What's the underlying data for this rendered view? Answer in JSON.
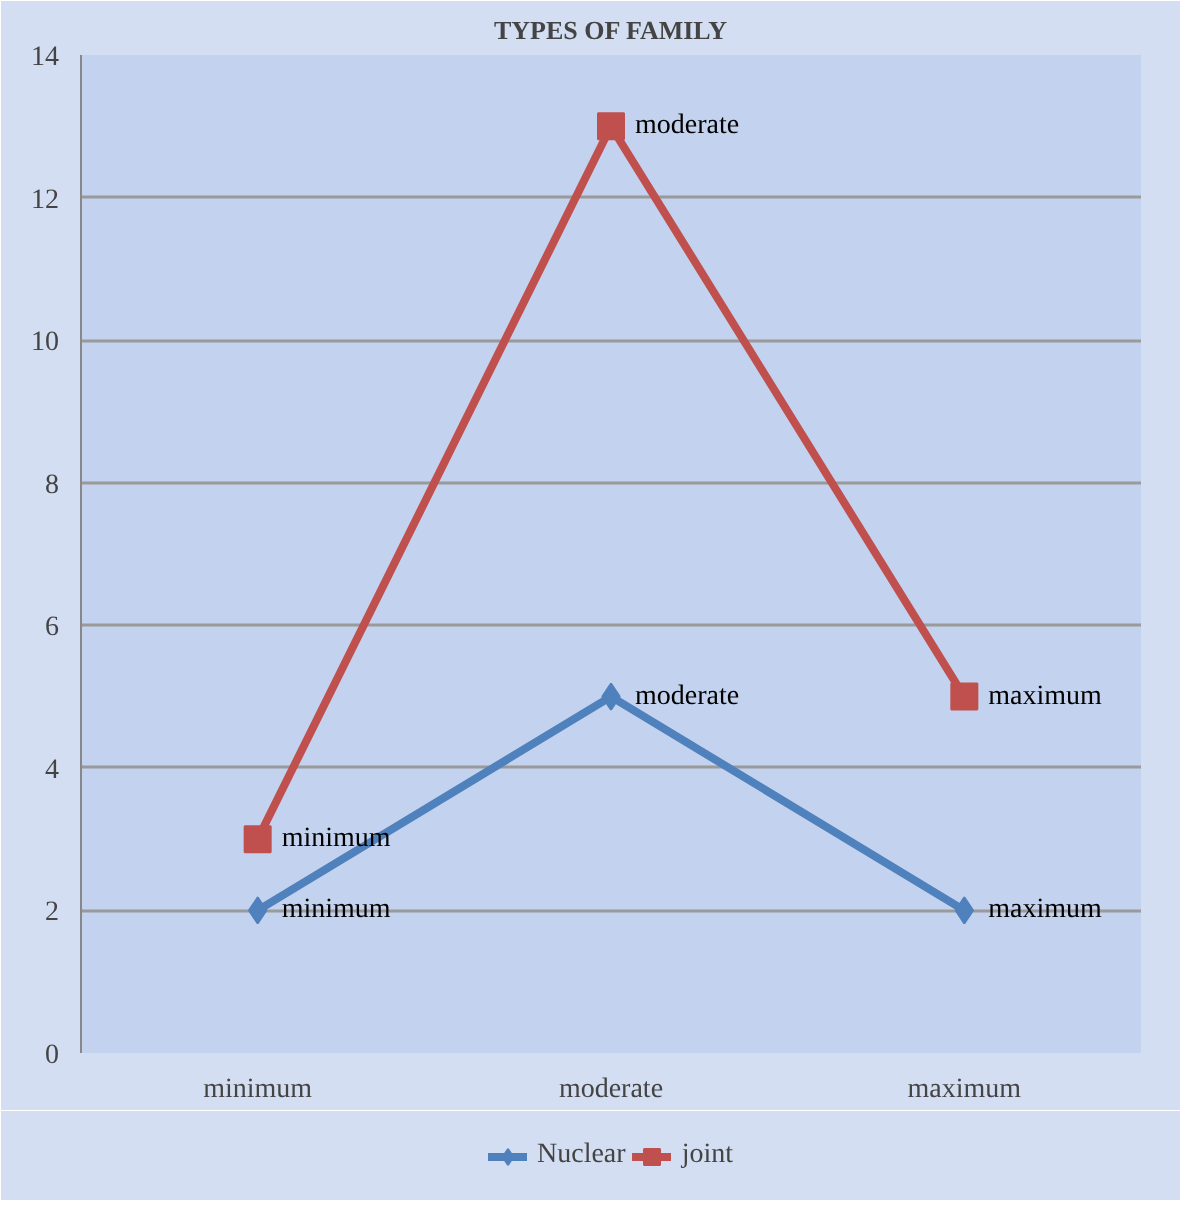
{
  "chart_data": {
    "type": "line",
    "title": "TYPES OF FAMILY",
    "categories": [
      "minimum",
      "moderate",
      "maximum"
    ],
    "series": [
      {
        "name": "Nuclear",
        "color": "#4f81bd",
        "marker": "diamond",
        "values": [
          2,
          5,
          2
        ],
        "value_labels": [
          "minimum",
          "moderate",
          "maximum"
        ]
      },
      {
        "name": "joint",
        "color": "#c0504d",
        "marker": "square",
        "values": [
          3,
          13,
          5
        ],
        "value_labels": [
          "minimum",
          "moderate",
          "maximum"
        ]
      }
    ],
    "ylim": [
      0,
      14
    ],
    "yticks": [
      0,
      2,
      4,
      6,
      8,
      10,
      12,
      14
    ],
    "grid": "y",
    "legend": "bottom"
  }
}
